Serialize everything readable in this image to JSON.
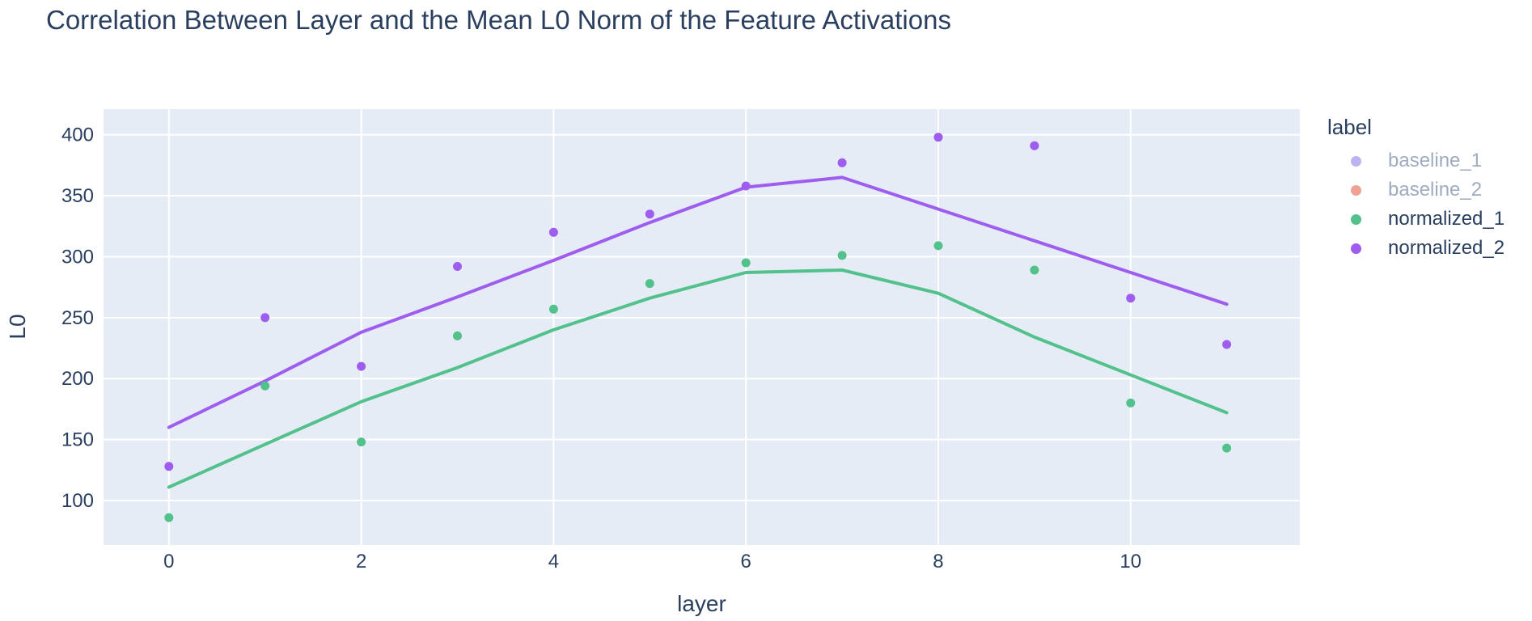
{
  "title": "Correlation Between Layer and the Mean L0 Norm of the Feature Activations",
  "colors": {
    "plot_background": "#e5ecf6",
    "gridline": "#ffffff",
    "text": "#2a3f5f",
    "muted_text": "#9fabbf"
  },
  "chart_data": {
    "type": "scatter",
    "title": "Correlation Between Layer and the Mean L0 Norm of the Feature Activations",
    "xlabel": "layer",
    "ylabel": "L0",
    "legend_title": "label",
    "legend_position": "right",
    "grid": true,
    "x_ticks": [
      0,
      2,
      4,
      6,
      8,
      10
    ],
    "y_ticks": [
      100,
      150,
      200,
      250,
      300,
      350,
      400
    ],
    "x_range": [
      -0.68,
      11.76
    ],
    "y_range": [
      63.5,
      421
    ],
    "x": [
      0,
      1,
      2,
      3,
      4,
      5,
      6,
      7,
      8,
      9,
      10,
      11
    ],
    "series": [
      {
        "name": "baseline_1",
        "color": "#c0b1f0",
        "visible": false
      },
      {
        "name": "baseline_2",
        "color": "#efa193",
        "visible": false
      },
      {
        "name": "normalized_1",
        "color": "#52c18b",
        "visible": true,
        "scatter": [
          86,
          194,
          148,
          235,
          257,
          278,
          295,
          301,
          309,
          289,
          180,
          143
        ],
        "trend": [
          111,
          146,
          181,
          209,
          240,
          266,
          287,
          289,
          270,
          234,
          203,
          172
        ]
      },
      {
        "name": "normalized_2",
        "color": "#9f5df0",
        "visible": true,
        "scatter": [
          128,
          250,
          210,
          292,
          320,
          335,
          358,
          377,
          398,
          391,
          266,
          228
        ],
        "trend": [
          160,
          198,
          238,
          267,
          297,
          328,
          357,
          365,
          339,
          313,
          287,
          261
        ]
      }
    ]
  }
}
